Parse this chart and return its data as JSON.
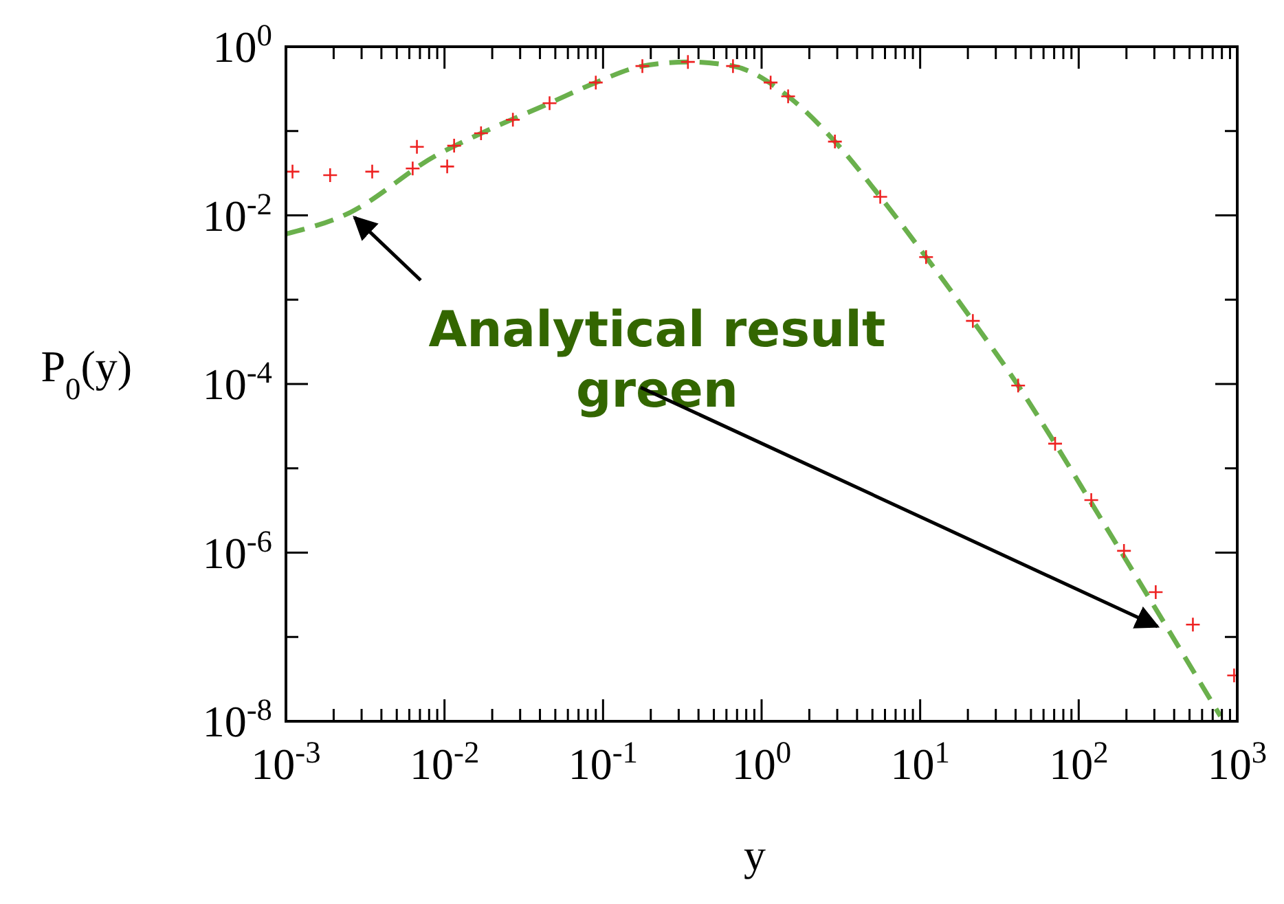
{
  "chart_data": {
    "type": "scatter",
    "xlabel": "y",
    "ylabel": "P$_{0}$(y)",
    "log": "xy",
    "grid": false,
    "xlim": [
      0.001,
      1000
    ],
    "ylim": [
      1e-08,
      1
    ],
    "xticks": [
      {
        "value": 0.001,
        "label": "10$^{-3}$"
      },
      {
        "value": 0.002,
        "label": null
      },
      {
        "value": 0.003,
        "label": null
      },
      {
        "value": 0.004,
        "label": null
      },
      {
        "value": 0.005,
        "label": null
      },
      {
        "value": 0.006,
        "label": null
      },
      {
        "value": 0.007,
        "label": null
      },
      {
        "value": 0.008,
        "label": null
      },
      {
        "value": 0.009,
        "label": null
      },
      {
        "value": 0.01,
        "label": "10$^{-2}$"
      },
      {
        "value": 0.02,
        "label": null
      },
      {
        "value": 0.03,
        "label": null
      },
      {
        "value": 0.04,
        "label": null
      },
      {
        "value": 0.05,
        "label": null
      },
      {
        "value": 0.06,
        "label": null
      },
      {
        "value": 0.07,
        "label": null
      },
      {
        "value": 0.08,
        "label": null
      },
      {
        "value": 0.09,
        "label": null
      },
      {
        "value": 0.1,
        "label": "10$^{-1}$"
      },
      {
        "value": 0.2,
        "label": null
      },
      {
        "value": 0.3,
        "label": null
      },
      {
        "value": 0.4,
        "label": null
      },
      {
        "value": 0.5,
        "label": null
      },
      {
        "value": 0.6,
        "label": null
      },
      {
        "value": 0.7,
        "label": null
      },
      {
        "value": 0.8,
        "label": null
      },
      {
        "value": 0.9,
        "label": null
      },
      {
        "value": 1,
        "label": "10$^{0}$"
      },
      {
        "value": 2,
        "label": null
      },
      {
        "value": 3,
        "label": null
      },
      {
        "value": 4,
        "label": null
      },
      {
        "value": 5,
        "label": null
      },
      {
        "value": 6,
        "label": null
      },
      {
        "value": 7,
        "label": null
      },
      {
        "value": 8,
        "label": null
      },
      {
        "value": 9,
        "label": null
      },
      {
        "value": 10,
        "label": "10$^{1}$"
      },
      {
        "value": 20,
        "label": null
      },
      {
        "value": 30,
        "label": null
      },
      {
        "value": 40,
        "label": null
      },
      {
        "value": 50,
        "label": null
      },
      {
        "value": 60,
        "label": null
      },
      {
        "value": 70,
        "label": null
      },
      {
        "value": 80,
        "label": null
      },
      {
        "value": 90,
        "label": null
      },
      {
        "value": 100,
        "label": "10$^{2}$"
      },
      {
        "value": 200,
        "label": null
      },
      {
        "value": 300,
        "label": null
      },
      {
        "value": 400,
        "label": null
      },
      {
        "value": 500,
        "label": null
      },
      {
        "value": 600,
        "label": null
      },
      {
        "value": 700,
        "label": null
      },
      {
        "value": 800,
        "label": null
      },
      {
        "value": 900,
        "label": null
      },
      {
        "value": 1000,
        "label": "10$^{3}$"
      }
    ],
    "yticks": [
      {
        "value": 1,
        "label": "10$^{0}$"
      },
      {
        "value": 0.1,
        "label": null
      },
      {
        "value": 0.01,
        "label": "10$^{-2}$"
      },
      {
        "value": 0.001,
        "label": null
      },
      {
        "value": 0.0001,
        "label": "10$^{-4}$"
      },
      {
        "value": 1e-05,
        "label": null
      },
      {
        "value": 1e-06,
        "label": "10$^{-6}$"
      },
      {
        "value": 1e-07,
        "label": null
      },
      {
        "value": 1e-08,
        "label": "10$^{-8}$"
      }
    ],
    "series": [
      {
        "color": "#ee2222",
        "marker": "cross",
        "x": [
          0.0011,
          0.0019,
          0.0035,
          0.0063,
          0.0104,
          0.0067,
          0.0115,
          0.017,
          0.027,
          0.046,
          0.09,
          0.177,
          0.343,
          0.66,
          1.14,
          1.47,
          2.9,
          5.6,
          10.9,
          21.5,
          41.5,
          71,
          120,
          193,
          306,
          525,
          955
        ],
        "values": [
          0.033,
          0.03,
          0.033,
          0.036,
          0.038,
          0.065,
          0.067,
          0.094,
          0.136,
          0.214,
          0.376,
          0.59,
          0.66,
          0.59,
          0.376,
          0.258,
          0.075,
          0.0166,
          0.0032,
          0.00056,
          9.6e-05,
          1.96e-05,
          4.2e-06,
          1.05e-06,
          3.4e-07,
          1.4e-07,
          3.5e-08
        ]
      },
      {
        "type": "line",
        "color": "#6ab04c",
        "line_style": "dashed",
        "marker": "none",
        "x": [
          0.001,
          0.00246,
          0.0088,
          0.017,
          0.046,
          0.09,
          0.177,
          0.343,
          0.66,
          1.47,
          2.9,
          5.6,
          10.9,
          21.5,
          41.5,
          71,
          120,
          288,
          783
        ],
        "values": [
          0.006,
          0.0105,
          0.051,
          0.094,
          0.214,
          0.376,
          0.59,
          0.66,
          0.59,
          0.258,
          0.075,
          0.0166,
          0.0032,
          0.00056,
          9.6e-05,
          1.96e-05,
          3.9e-06,
          2.6e-07,
          1.15e-08
        ]
      }
    ],
    "annotations": [
      {
        "text": "Analytical result\ngreen",
        "x": 0.0025,
        "y": 0.011
      }
    ]
  }
}
